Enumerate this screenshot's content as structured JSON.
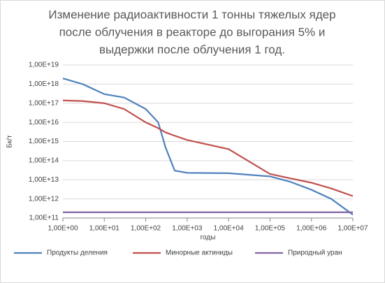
{
  "chart_data": {
    "type": "line",
    "title": [
      "Изменение радиоактивности 1 тонны тяжелых ядер",
      "после облучения в реакторе до выгорания 5% и",
      "выдержки после облучения 1 год."
    ],
    "x_label": "годы",
    "y_label": "Бк/т",
    "x": [
      1,
      3,
      10,
      30,
      100,
      200,
      300,
      500,
      1000,
      10000,
      100000,
      300000,
      1000000,
      3000000,
      10000000
    ],
    "series": [
      {
        "name": "Продукты деления",
        "color": "#4f81bd",
        "values": [
          2e+18,
          1e+18,
          3e+17,
          2e+17,
          5e+16,
          1e+16,
          500000000000000.0,
          30000000000000.0,
          23000000000000.0,
          22000000000000.0,
          15000000000000.0,
          8000000000000.0,
          3000000000000.0,
          1000000000000.0,
          150000000000.0
        ]
      },
      {
        "name": "Минорные актиниды",
        "color": "#c0504d",
        "values": [
          1.4e+17,
          1.3e+17,
          1e+17,
          5e+16,
          1e+16,
          5000000000000000.0,
          3000000000000000.0,
          2000000000000000.0,
          1200000000000000.0,
          400000000000000.0,
          20000000000000.0,
          12000000000000.0,
          7000000000000.0,
          3500000000000.0,
          1400000000000.0
        ]
      },
      {
        "name": "Природный уран",
        "color": "#8064a2",
        "values": [
          200000000000.0,
          200000000000.0,
          200000000000.0,
          200000000000.0,
          200000000000.0,
          200000000000.0,
          200000000000.0,
          200000000000.0,
          200000000000.0,
          200000000000.0,
          200000000000.0,
          200000000000.0,
          200000000000.0,
          200000000000.0,
          200000000000.0
        ]
      }
    ],
    "xscale": "log",
    "yscale": "log",
    "xlim": [
      1,
      10000000
    ],
    "ylim": [
      100000000000.0,
      1e+19
    ],
    "xticks": [
      {
        "value": 1,
        "label": "1,00E+00"
      },
      {
        "value": 10,
        "label": "1,00E+01"
      },
      {
        "value": 100,
        "label": "1,00E+02"
      },
      {
        "value": 1000,
        "label": "1,00E+03"
      },
      {
        "value": 10000,
        "label": "1,00E+04"
      },
      {
        "value": 100000,
        "label": "1,00E+05"
      },
      {
        "value": 1000000,
        "label": "1,00E+06"
      },
      {
        "value": 10000000,
        "label": "1,00E+07"
      }
    ],
    "yticks": [
      {
        "value": 100000000000.0,
        "label": "1,00E+11"
      },
      {
        "value": 1000000000000.0,
        "label": "1,00E+12"
      },
      {
        "value": 10000000000000.0,
        "label": "1,00E+13"
      },
      {
        "value": 100000000000000.0,
        "label": "1,00E+14"
      },
      {
        "value": 1000000000000000.0,
        "label": "1,00E+15"
      },
      {
        "value": 1e+16,
        "label": "1,00E+16"
      },
      {
        "value": 1e+17,
        "label": "1,00E+17"
      },
      {
        "value": 1e+18,
        "label": "1,00E+18"
      },
      {
        "value": 1e+19,
        "label": "1,00E+19"
      }
    ],
    "grid": true,
    "legend": "bottom"
  }
}
